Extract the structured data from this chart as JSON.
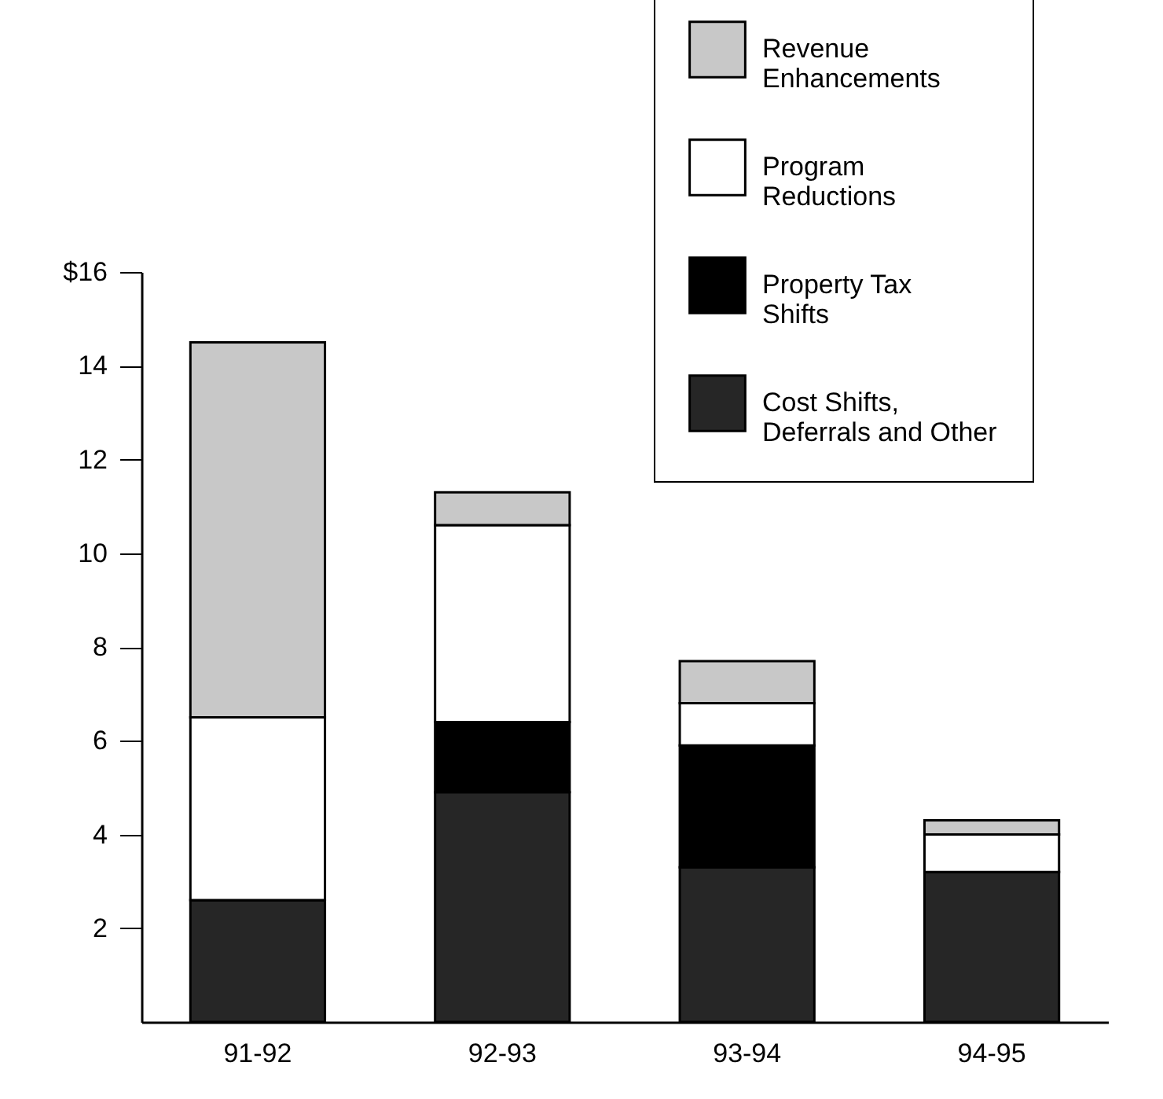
{
  "chart_data": {
    "type": "bar",
    "stacked": true,
    "categories": [
      "91-92",
      "92-93",
      "93-94",
      "94-95"
    ],
    "series": [
      {
        "name": "Cost Shifts, Deferrals and Other",
        "color": "#262626",
        "values": [
          2.6,
          4.9,
          3.3,
          3.2
        ]
      },
      {
        "name": "Property Tax Shifts",
        "color": "#000000",
        "values": [
          0,
          1.5,
          2.6,
          0
        ]
      },
      {
        "name": "Program Reductions",
        "color": "#ffffff",
        "values": [
          3.9,
          4.2,
          0.9,
          0.8
        ]
      },
      {
        "name": "Revenue Enhancements",
        "color": "#c8c8c8",
        "values": [
          8.0,
          0.7,
          0.9,
          0.3
        ]
      }
    ],
    "ylim": [
      0,
      16
    ],
    "yticks": [
      2,
      4,
      6,
      8,
      10,
      12,
      14,
      {
        "value": 16,
        "label": "$16"
      }
    ],
    "legend": "top right"
  }
}
